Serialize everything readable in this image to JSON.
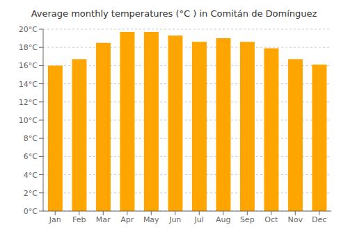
{
  "chart_data": {
    "type": "bar",
    "title": "Average monthly temperatures (°C ) in Comitán de Domínguez",
    "categories": [
      "Jan",
      "Feb",
      "Mar",
      "Apr",
      "May",
      "Jun",
      "Jul",
      "Aug",
      "Sep",
      "Oct",
      "Nov",
      "Dec"
    ],
    "values": [
      16.0,
      16.7,
      18.5,
      19.7,
      19.7,
      19.3,
      18.6,
      19.0,
      18.6,
      17.9,
      16.7,
      16.1
    ],
    "color": "#FFA500",
    "ylim": [
      0,
      20
    ],
    "yticks": [
      {
        "value": 0,
        "label": "0°C"
      },
      {
        "value": 2,
        "label": "2°C"
      },
      {
        "value": 4,
        "label": "4°C"
      },
      {
        "value": 6,
        "label": "6°C"
      },
      {
        "value": 8,
        "label": "8°C"
      },
      {
        "value": 10,
        "label": "10°C"
      },
      {
        "value": 12,
        "label": "12°C"
      },
      {
        "value": 14,
        "label": "14°C"
      },
      {
        "value": 16,
        "label": "16°C"
      },
      {
        "value": 18,
        "label": "18°C"
      },
      {
        "value": 20,
        "label": "20°C"
      }
    ],
    "grid": true
  }
}
